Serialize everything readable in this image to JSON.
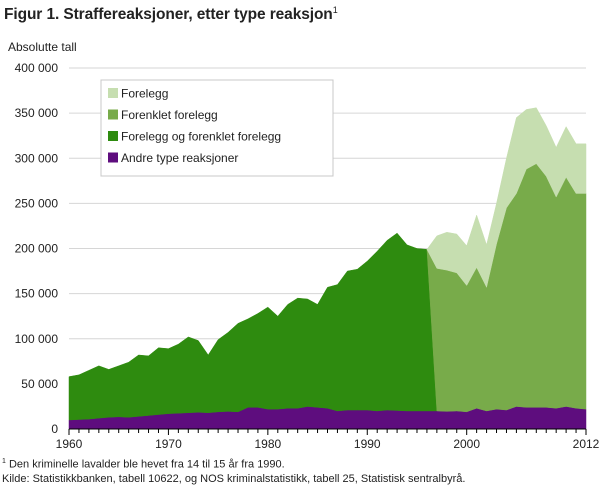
{
  "figure": {
    "title": "Figur 1. Straffereaksjoner, etter type reaksjon",
    "title_note_marker": "1",
    "y_unit": "Absolutte tall",
    "footnote_marker": "1",
    "footnote": " Den kriminelle lavalder ble hevet fra 14 til 15 år fra 1990.",
    "source": "Kilde: Statistikkbanken, tabell 10622, og NOS kriminalstatistikk, tabell 25, Statistisk sentralbyrå."
  },
  "chart_data": {
    "type": "area",
    "stacked": true,
    "title": "Figur 1. Straffereaksjoner, etter type reaksjon",
    "ylabel": "Absolutte tall",
    "xlabel": "",
    "x_ticks": [
      1960,
      1970,
      1980,
      1990,
      2000,
      2012
    ],
    "y_ticks": [
      0,
      50000,
      100000,
      150000,
      200000,
      250000,
      300000,
      350000,
      400000
    ],
    "y_tick_labels": [
      "0",
      "50 000",
      "100 000",
      "150 000",
      "200 000",
      "250 000",
      "300 000",
      "350 000",
      "400 000"
    ],
    "xlim": [
      1960,
      2012
    ],
    "ylim": [
      0,
      400000
    ],
    "legend_position": "top-left",
    "x": [
      1960,
      1961,
      1962,
      1963,
      1964,
      1965,
      1966,
      1967,
      1968,
      1969,
      1970,
      1971,
      1972,
      1973,
      1974,
      1975,
      1976,
      1977,
      1978,
      1979,
      1980,
      1981,
      1982,
      1983,
      1984,
      1985,
      1986,
      1987,
      1988,
      1989,
      1990,
      1991,
      1992,
      1993,
      1994,
      1995,
      1996,
      1997,
      1998,
      1999,
      2000,
      2001,
      2002,
      2003,
      2004,
      2005,
      2006,
      2007,
      2008,
      2009,
      2010,
      2011,
      2012
    ],
    "series": [
      {
        "name": "Andre type reaksjoner",
        "color": "#5e0d7e",
        "values": [
          10000,
          10500,
          11000,
          12000,
          13000,
          13500,
          13000,
          14000,
          15000,
          16000,
          17000,
          17500,
          18000,
          18500,
          18000,
          19000,
          19500,
          19000,
          24000,
          24000,
          22000,
          22000,
          23000,
          23000,
          25000,
          24000,
          23000,
          20000,
          21000,
          21000,
          21000,
          20000,
          21000,
          20500,
          20000,
          20000,
          20000,
          20000,
          19500,
          20000,
          19000,
          23000,
          20000,
          22000,
          21000,
          25000,
          24000,
          24000,
          24000,
          23000,
          25000,
          23000,
          22000
        ]
      },
      {
        "name": "Forelegg og forenklet forelegg",
        "color": "#2e8b0f",
        "values": [
          48000,
          49500,
          54000,
          58000,
          53000,
          56500,
          61000,
          68000,
          66000,
          74000,
          72000,
          76500,
          84000,
          79500,
          64000,
          80000,
          87500,
          98000,
          98000,
          104000,
          113000,
          103000,
          115000,
          122000,
          119000,
          114000,
          134000,
          140000,
          154000,
          156000,
          165000,
          177000,
          188000,
          196500,
          184000,
          180000,
          179000,
          0,
          0,
          0,
          0,
          0,
          0,
          0,
          0,
          0,
          0,
          0,
          0,
          0,
          0,
          0,
          0
        ]
      },
      {
        "name": "Forenklet forelegg",
        "color": "#78ab4a",
        "values": [
          0,
          0,
          0,
          0,
          0,
          0,
          0,
          0,
          0,
          0,
          0,
          0,
          0,
          0,
          0,
          0,
          0,
          0,
          0,
          0,
          0,
          0,
          0,
          0,
          0,
          0,
          0,
          0,
          0,
          0,
          0,
          0,
          0,
          0,
          0,
          0,
          0,
          158000,
          156500,
          153000,
          140000,
          156000,
          137000,
          183000,
          224000,
          236000,
          264000,
          270000,
          256000,
          234000,
          254000,
          238000,
          239000
        ]
      },
      {
        "name": "Forelegg",
        "color": "#c6deb0",
        "values": [
          0,
          0,
          0,
          0,
          0,
          0,
          0,
          0,
          0,
          0,
          0,
          0,
          0,
          0,
          0,
          0,
          0,
          0,
          0,
          0,
          0,
          0,
          0,
          0,
          0,
          0,
          0,
          0,
          0,
          0,
          0,
          0,
          0,
          0,
          0,
          0,
          0,
          36000,
          42000,
          43000,
          44000,
          58000,
          47000,
          45000,
          55000,
          84000,
          66000,
          62000,
          56000,
          55000,
          56000,
          55000,
          55000
        ]
      }
    ],
    "legend": [
      "Forelegg",
      "Forenklet forelegg",
      "Forelegg og forenklet forelegg",
      "Andre type reaksjoner"
    ]
  }
}
